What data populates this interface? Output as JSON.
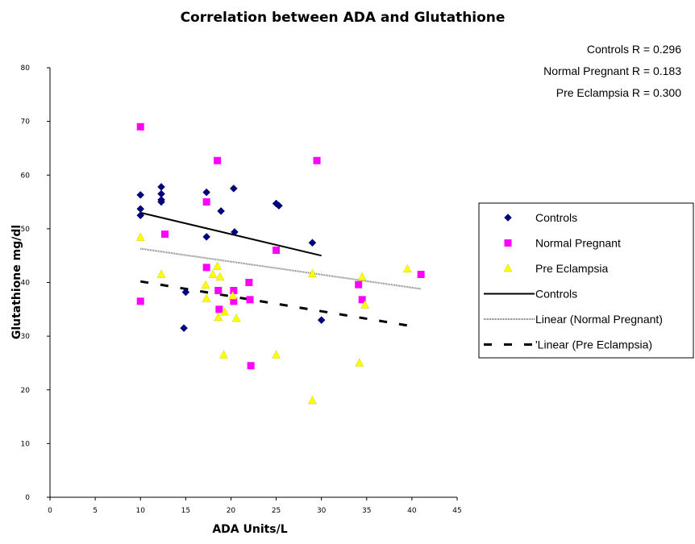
{
  "chart_data": {
    "type": "scatter",
    "title": "Correlation between ADA and Glutathione",
    "xlabel": "ADA Units/L",
    "ylabel": "Glutathione mg/dl",
    "xlim": [
      0,
      45
    ],
    "ylim": [
      0,
      80
    ],
    "xticks": [
      0,
      5,
      10,
      15,
      20,
      25,
      30,
      35,
      40,
      45
    ],
    "yticks": [
      0,
      10,
      20,
      30,
      40,
      50,
      60,
      70,
      80
    ],
    "grid": false,
    "legend_position": "right",
    "r_annotations": [
      {
        "label": "Controls",
        "text": "R = 0.296"
      },
      {
        "label": "Normal Pregnant",
        "text": "R = 0.183"
      },
      {
        "label": "Pre Eclampsia",
        "text": "R = 0.300"
      }
    ],
    "series": [
      {
        "name": "Controls",
        "marker": "diamond",
        "color": "#000080",
        "points": [
          [
            10,
            56.3
          ],
          [
            10,
            53.7
          ],
          [
            10,
            52.5
          ],
          [
            12.3,
            57.8
          ],
          [
            12.3,
            56.5
          ],
          [
            12.3,
            55.4
          ],
          [
            12.3,
            55
          ],
          [
            17.3,
            56.8
          ],
          [
            17.3,
            48.5
          ],
          [
            18.9,
            53.3
          ],
          [
            20.3,
            57.5
          ],
          [
            20.4,
            49.4
          ],
          [
            25,
            54.7
          ],
          [
            25.3,
            54.3
          ],
          [
            29,
            47.4
          ],
          [
            15,
            38.2
          ],
          [
            14.8,
            31.5
          ],
          [
            30,
            33
          ]
        ]
      },
      {
        "name": "Normal Pregnant",
        "marker": "square",
        "color": "#FF00FF",
        "points": [
          [
            10,
            69
          ],
          [
            10,
            36.5
          ],
          [
            12.7,
            49
          ],
          [
            17.3,
            55
          ],
          [
            17.3,
            42.8
          ],
          [
            18.5,
            62.7
          ],
          [
            18.6,
            38.5
          ],
          [
            18.7,
            35
          ],
          [
            20.3,
            38.5
          ],
          [
            20.3,
            36.5
          ],
          [
            22,
            40
          ],
          [
            22.1,
            36.8
          ],
          [
            22.2,
            24.5
          ],
          [
            25,
            46
          ],
          [
            29.5,
            62.7
          ],
          [
            34.1,
            39.6
          ],
          [
            34.5,
            36.8
          ],
          [
            41,
            41.5
          ]
        ]
      },
      {
        "name": "Pre Eclampsia",
        "marker": "triangle",
        "color": "#FFFF00",
        "points": [
          [
            10,
            48.4
          ],
          [
            12.3,
            41.5
          ],
          [
            17.2,
            39.5
          ],
          [
            17.3,
            37
          ],
          [
            18,
            41.5
          ],
          [
            18.5,
            43
          ],
          [
            18.6,
            33.5
          ],
          [
            18.8,
            41
          ],
          [
            19.2,
            26.5
          ],
          [
            19.3,
            34.5
          ],
          [
            20.2,
            37.5
          ],
          [
            20.6,
            33.3
          ],
          [
            25,
            26.5
          ],
          [
            29,
            18
          ],
          [
            29,
            41.6
          ],
          [
            34.2,
            25
          ],
          [
            34.5,
            41
          ],
          [
            34.8,
            35.8
          ],
          [
            39.5,
            42.5
          ]
        ]
      }
    ],
    "trendlines": [
      {
        "name": "Controls",
        "style": "solid",
        "color": "#000000",
        "x": [
          10,
          30
        ],
        "y": [
          53,
          45
        ]
      },
      {
        "name": "Linear (Normal Pregnant)",
        "style": "hatched",
        "color": "#606060",
        "x": [
          10,
          41
        ],
        "y": [
          46.3,
          38.8
        ]
      },
      {
        "name": "Linear (Pre Eclampsia)",
        "style": "dashed",
        "color": "#000000",
        "x": [
          10,
          39.5
        ],
        "y": [
          40.2,
          32
        ]
      }
    ],
    "legend": {
      "entries": [
        {
          "label": "Controls",
          "kind": "marker",
          "ref": 0
        },
        {
          "label": "Normal Pregnant",
          "kind": "marker",
          "ref": 1
        },
        {
          "label": "Pre Eclampsia",
          "kind": "marker",
          "ref": 2
        },
        {
          "label": "Controls",
          "kind": "line",
          "ref": 0
        },
        {
          "label": "Linear (Normal Pregnant)",
          "kind": "line",
          "ref": 1
        },
        {
          "label": "'Linear (Pre Eclampsia)",
          "kind": "line",
          "ref": 2
        }
      ]
    }
  }
}
